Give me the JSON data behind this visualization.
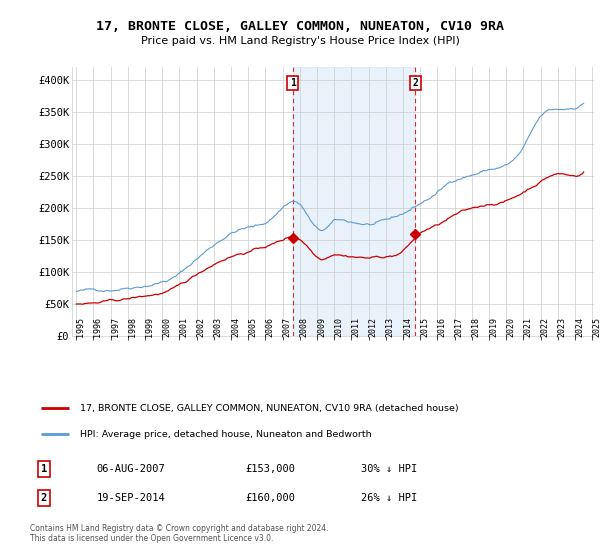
{
  "title": "17, BRONTE CLOSE, GALLEY COMMON, NUNEATON, CV10 9RA",
  "subtitle": "Price paid vs. HM Land Registry's House Price Index (HPI)",
  "outer_bg": "#ffffff",
  "plot_bg": "#ffffff",
  "grid_color": "#cccccc",
  "shade_color": "#ddeeff",
  "ylim": [
    0,
    420000
  ],
  "yticks": [
    0,
    50000,
    100000,
    150000,
    200000,
    250000,
    300000,
    350000,
    400000
  ],
  "ytick_labels": [
    "£0",
    "£50K",
    "£100K",
    "£150K",
    "£200K",
    "£250K",
    "£300K",
    "£350K",
    "£400K"
  ],
  "sale1": {
    "date_num": 2007.58,
    "price": 153000,
    "label": "1",
    "date_str": "06-AUG-2007",
    "pct": "30%"
  },
  "sale2": {
    "date_num": 2014.72,
    "price": 160000,
    "label": "2",
    "date_str": "19-SEP-2014",
    "pct": "26%"
  },
  "hpi_color": "#5b9bd5",
  "price_color": "#cc0000",
  "legend_label_price": "17, BRONTE CLOSE, GALLEY COMMON, NUNEATON, CV10 9RA (detached house)",
  "legend_label_hpi": "HPI: Average price, detached house, Nuneaton and Bedworth",
  "footer": "Contains HM Land Registry data © Crown copyright and database right 2024.\nThis data is licensed under the Open Government Licence v3.0."
}
